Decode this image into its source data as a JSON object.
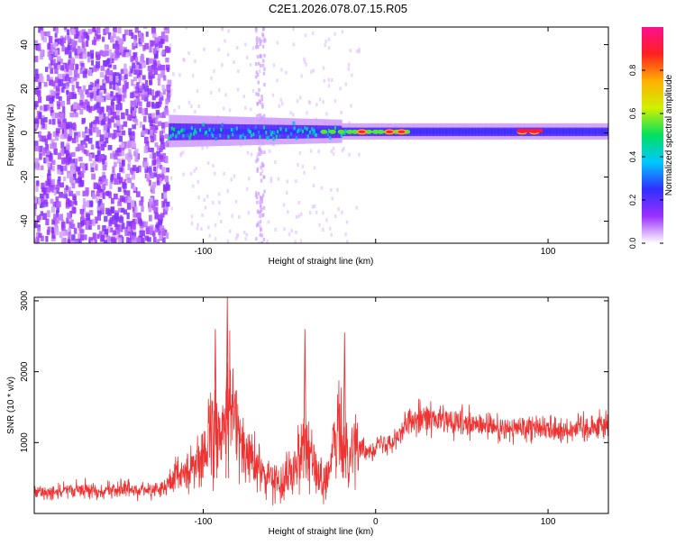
{
  "title": "C2E1.2026.078.07.15.R05",
  "chart_data": [
    {
      "type": "heatmap",
      "xlabel": "Height of straight line (km)",
      "ylabel": "Frequency (Hz)",
      "xlim": [
        -198,
        135
      ],
      "ylim": [
        -50,
        48
      ],
      "xticks": [
        -100,
        0,
        100
      ],
      "xtick_labels": [
        "-100",
        "",
        "100"
      ],
      "yticks": [
        -40,
        -20,
        0,
        20,
        40
      ],
      "ytick_labels": [
        "-40",
        "-20",
        "0",
        "20",
        "40"
      ],
      "colorbar": {
        "label": "Normalized spectral amplitude",
        "range": [
          0,
          1
        ],
        "ticks": [
          0.0,
          0.2,
          0.4,
          0.6,
          0.8
        ],
        "tick_labels": [
          "0.0",
          "0.2",
          "0.4",
          "0.6",
          "0.8"
        ],
        "colors": [
          "#ffffff",
          "#9b30ff",
          "#3030ff",
          "#00c8ff",
          "#00e060",
          "#d0f000",
          "#ffb000",
          "#ff2020",
          "#ff1090"
        ]
      },
      "features": {
        "noise_region_x": [
          -198,
          -120
        ],
        "noise_color": "#7b1fe8",
        "signal_center_hz": 0.5,
        "signal_spread_hz": [
          -8,
          8
        ],
        "peaks_x": [
          -8,
          8,
          15,
          85,
          92
        ]
      }
    },
    {
      "type": "line",
      "xlabel": "Height of straight line (km)",
      "ylabel": "SNR (10 * v/v)",
      "xlim": [
        -198,
        135
      ],
      "ylim": [
        0,
        3050
      ],
      "xticks": [
        -100,
        0,
        100
      ],
      "xtick_labels": [
        "-100",
        "0",
        "100"
      ],
      "yticks": [
        1000,
        2000,
        3000
      ],
      "ytick_labels": [
        "1000",
        "2000",
        "3000"
      ],
      "series": [
        {
          "color": "#ee3333",
          "x": [
            -198,
            -180,
            -160,
            -140,
            -125,
            -118,
            -112,
            -105,
            -100,
            -95,
            -90,
            -86,
            -84,
            -82,
            -78,
            -74,
            -70,
            -65,
            -60,
            -55,
            -50,
            -45,
            -42,
            -40,
            -37,
            -34,
            -30,
            -27,
            -25,
            -22,
            -20,
            -18,
            -15,
            -12,
            -8,
            -5,
            0,
            5,
            10,
            15,
            20,
            25,
            30,
            35,
            40,
            45,
            50,
            55,
            60,
            70,
            80,
            90,
            100,
            110,
            120,
            135
          ],
          "y": [
            300,
            320,
            330,
            340,
            340,
            420,
            560,
            700,
            850,
            1050,
            1150,
            1500,
            1750,
            1300,
            950,
            800,
            700,
            560,
            480,
            430,
            620,
            800,
            1100,
            1000,
            750,
            540,
            460,
            520,
            850,
            1150,
            1050,
            900,
            950,
            1000,
            900,
            880,
            950,
            1000,
            1050,
            1150,
            1300,
            1400,
            1350,
            1300,
            1320,
            1250,
            1280,
            1220,
            1250,
            1200,
            1180,
            1250,
            1200,
            1180,
            1220,
            1250
          ]
        }
      ],
      "annotations_peaks": [
        {
          "x": -86,
          "y": 3050
        },
        {
          "x": -93,
          "y": 2600
        },
        {
          "x": -41,
          "y": 2600
        },
        {
          "x": -18,
          "y": 2550
        }
      ]
    }
  ]
}
